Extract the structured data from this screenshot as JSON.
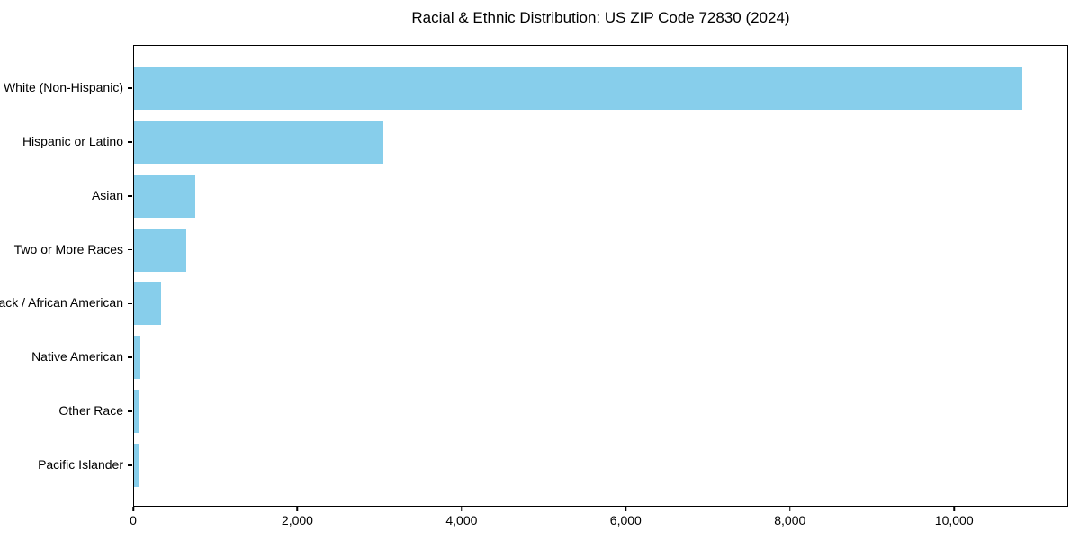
{
  "chart_data": {
    "type": "bar",
    "orientation": "horizontal",
    "title": "Racial & Ethnic Distribution: US ZIP Code 72830 (2024)",
    "categories": [
      "White (Non-Hispanic)",
      "Hispanic or Latino",
      "Asian",
      "Two or More Races",
      "Black / African American",
      "Native American",
      "Other Race",
      "Pacific Islander"
    ],
    "values": [
      10840,
      3040,
      750,
      640,
      330,
      75,
      70,
      55
    ],
    "bar_color": "#87CEEB",
    "xlabel": "",
    "ylabel": "",
    "xlim": [
      0,
      11390
    ],
    "xticks": [
      {
        "value": 0,
        "label": "0"
      },
      {
        "value": 2000,
        "label": "2,000"
      },
      {
        "value": 4000,
        "label": "4,000"
      },
      {
        "value": 6000,
        "label": "6,000"
      },
      {
        "value": 8000,
        "label": "8,000"
      },
      {
        "value": 10000,
        "label": "10,000"
      }
    ],
    "grid": false,
    "legend_position": "none"
  }
}
